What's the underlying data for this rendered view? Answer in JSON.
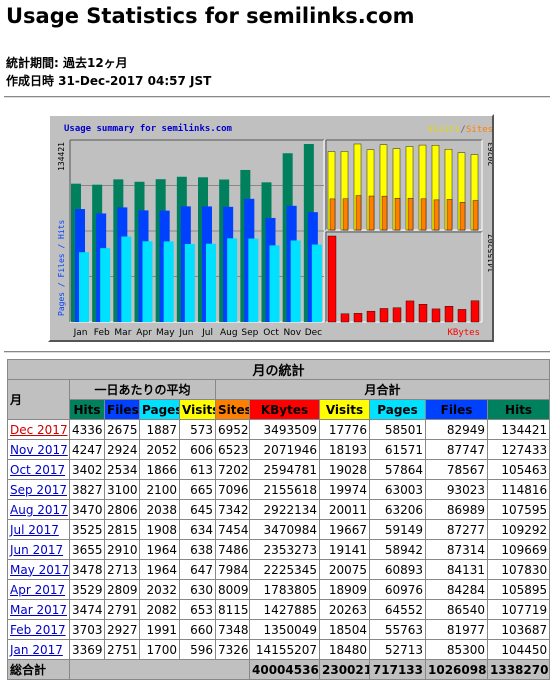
{
  "page": {
    "title": "Usage Statistics for semilinks.com",
    "period_label": "統計期間: 過去12ヶ月",
    "generated_label": "作成日時 31-Dec-2017 04:57 JST"
  },
  "colors": {
    "hits": "#00805c",
    "files": "#0040ff",
    "pages": "#00e0ff",
    "visits": "#ffff00",
    "sites": "#ff8000",
    "kbytes": "#ff0000",
    "panel_bg": "#c0c0c0"
  },
  "chart_data": {
    "type": "bar",
    "title": "Usage summary for semilinks.com",
    "categories": [
      "Jan",
      "Feb",
      "Mar",
      "Apr",
      "May",
      "Jun",
      "Jul",
      "Aug",
      "Sep",
      "Oct",
      "Nov",
      "Dec"
    ],
    "panels": [
      {
        "name": "Pages / Files / Hits",
        "ylabel": "Pages / Files / Hits",
        "ymax": 134421,
        "ymax_label": "134421",
        "series": [
          {
            "name": "Hits",
            "values": [
              104450,
              103687,
              107719,
              105895,
              107830,
              109669,
              109292,
              107595,
              114816,
              105463,
              127433,
              134421
            ]
          },
          {
            "name": "Files",
            "values": [
              85300,
              81977,
              86540,
              84284,
              84131,
              87314,
              87277,
              86989,
              93023,
              78567,
              87747,
              82949
            ]
          },
          {
            "name": "Pages",
            "values": [
              52713,
              55763,
              64552,
              60976,
              60893,
              58942,
              59149,
              63206,
              63003,
              57864,
              61571,
              58501
            ]
          }
        ]
      },
      {
        "name": "Visits / Sites",
        "ymax": 20263,
        "ymax_label": "20263",
        "legend": [
          "Visits",
          "Sites"
        ],
        "series": [
          {
            "name": "Visits",
            "values": [
              18480,
              18504,
              20263,
              18909,
              20075,
              19141,
              19667,
              20011,
              19974,
              19028,
              18193,
              17776
            ]
          },
          {
            "name": "Sites",
            "values": [
              7326,
              7348,
              8115,
              8009,
              7984,
              7486,
              7454,
              7342,
              7096,
              7202,
              6523,
              6952
            ]
          }
        ]
      },
      {
        "name": "KBytes",
        "ymax": 14155207,
        "ymax_label": "14155207",
        "legend_label": "KBytes",
        "series": [
          {
            "name": "KBytes",
            "values": [
              14155207,
              1350049,
              1427885,
              1783805,
              2225345,
              2353273,
              3470984,
              2922134,
              2155618,
              2594781,
              2071946,
              3493509
            ]
          }
        ]
      }
    ]
  },
  "table": {
    "title": "月の統計",
    "month_header": "月",
    "daily_avg_header": "一日あたりの平均",
    "monthly_total_header": "月合計",
    "daily_cols": [
      "Hits",
      "Files",
      "Pages",
      "Visits"
    ],
    "total_cols": [
      "Sites",
      "KBytes",
      "Visits",
      "Pages",
      "Files",
      "Hits"
    ],
    "rows": [
      {
        "month": "Dec 2017",
        "d": [
          "4336",
          "2675",
          "1887",
          "573"
        ],
        "t": [
          "6952",
          "3493509",
          "17776",
          "58501",
          "82949",
          "134421"
        ]
      },
      {
        "month": "Nov 2017",
        "d": [
          "4247",
          "2924",
          "2052",
          "606"
        ],
        "t": [
          "6523",
          "2071946",
          "18193",
          "61571",
          "87747",
          "127433"
        ]
      },
      {
        "month": "Oct 2017",
        "d": [
          "3402",
          "2534",
          "1866",
          "613"
        ],
        "t": [
          "7202",
          "2594781",
          "19028",
          "57864",
          "78567",
          "105463"
        ]
      },
      {
        "month": "Sep 2017",
        "d": [
          "3827",
          "3100",
          "2100",
          "665"
        ],
        "t": [
          "7096",
          "2155618",
          "19974",
          "63003",
          "93023",
          "114816"
        ]
      },
      {
        "month": "Aug 2017",
        "d": [
          "3470",
          "2806",
          "2038",
          "645"
        ],
        "t": [
          "7342",
          "2922134",
          "20011",
          "63206",
          "86989",
          "107595"
        ]
      },
      {
        "month": "Jul 2017",
        "d": [
          "3525",
          "2815",
          "1908",
          "634"
        ],
        "t": [
          "7454",
          "3470984",
          "19667",
          "59149",
          "87277",
          "109292"
        ]
      },
      {
        "month": "Jun 2017",
        "d": [
          "3655",
          "2910",
          "1964",
          "638"
        ],
        "t": [
          "7486",
          "2353273",
          "19141",
          "58942",
          "87314",
          "109669"
        ]
      },
      {
        "month": "May 2017",
        "d": [
          "3478",
          "2713",
          "1964",
          "647"
        ],
        "t": [
          "7984",
          "2225345",
          "20075",
          "60893",
          "84131",
          "107830"
        ]
      },
      {
        "month": "Apr 2017",
        "d": [
          "3529",
          "2809",
          "2032",
          "630"
        ],
        "t": [
          "8009",
          "1783805",
          "18909",
          "60976",
          "84284",
          "105895"
        ]
      },
      {
        "month": "Mar 2017",
        "d": [
          "3474",
          "2791",
          "2082",
          "653"
        ],
        "t": [
          "8115",
          "1427885",
          "20263",
          "64552",
          "86540",
          "107719"
        ]
      },
      {
        "month": "Feb 2017",
        "d": [
          "3703",
          "2927",
          "1991",
          "660"
        ],
        "t": [
          "7348",
          "1350049",
          "18504",
          "55763",
          "81977",
          "103687"
        ]
      },
      {
        "month": "Jan 2017",
        "d": [
          "3369",
          "2751",
          "1700",
          "596"
        ],
        "t": [
          "7326",
          "14155207",
          "18480",
          "52713",
          "85300",
          "104450"
        ]
      }
    ],
    "total_label": "総合計",
    "totals": [
      "40004536",
      "230021",
      "717133",
      "1026098",
      "1338270"
    ]
  }
}
